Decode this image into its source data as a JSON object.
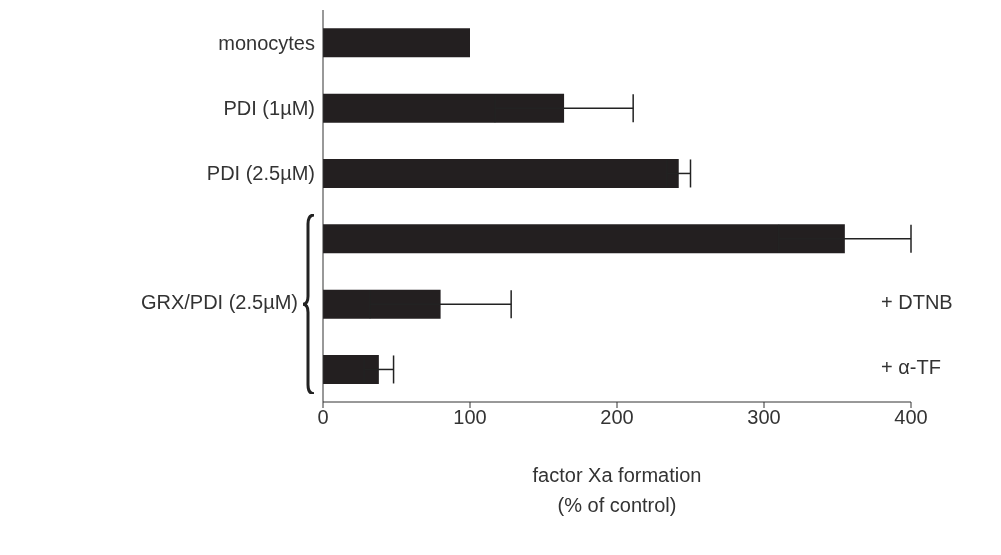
{
  "chart_data": {
    "type": "bar",
    "orientation": "horizontal",
    "xlabel": "factor Xa formation\n(% of control)",
    "categories": [
      "monocytes",
      "PDI (1µM)",
      "PDI (2.5µM)",
      null,
      null,
      null
    ],
    "values": [
      100,
      164,
      242,
      355,
      80,
      38
    ],
    "errors": [
      null,
      47,
      8,
      45,
      48,
      10
    ],
    "color": "#231f20",
    "xlim": [
      0,
      400
    ],
    "xticks": [
      0,
      100,
      200,
      300,
      400
    ],
    "annotations": [
      "GRX/PDI (2.5µM)",
      "+ DTNB",
      "+ α-TF"
    ]
  }
}
